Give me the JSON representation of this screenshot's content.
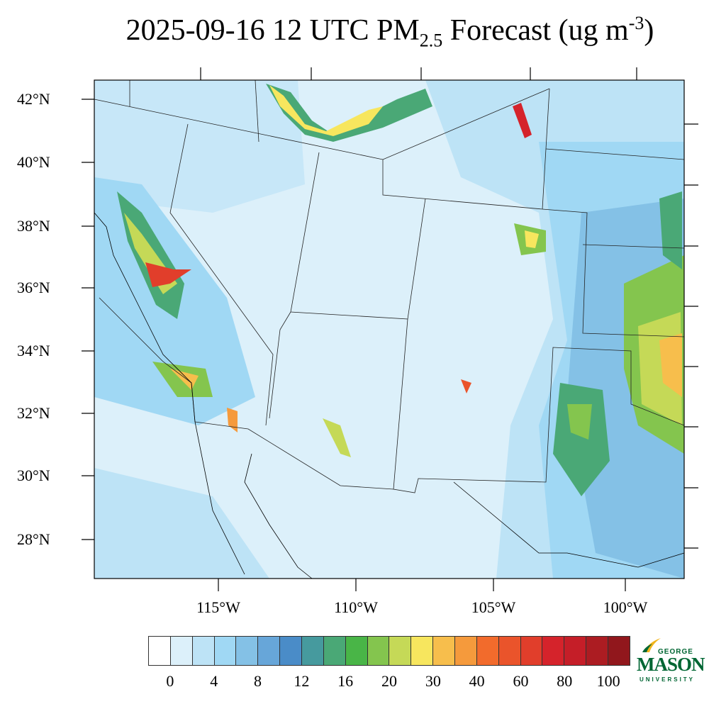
{
  "title": {
    "date_text": "2025-09-16 12 UTC PM",
    "subscript": "2.5",
    "forecast_text": " Forecast (ug m",
    "superscript": "-3",
    "close": ")"
  },
  "lat_labels": [
    "42°N",
    "40°N",
    "38°N",
    "36°N",
    "34°N",
    "32°N",
    "30°N",
    "28°N"
  ],
  "lon_labels": [
    "115°W",
    "110°W",
    "105°W",
    "100°W"
  ],
  "colorbar": {
    "labels": [
      "0",
      "4",
      "8",
      "12",
      "16",
      "20",
      "30",
      "40",
      "60",
      "80",
      "100"
    ],
    "levels": [
      0,
      2,
      4,
      6,
      8,
      10,
      12,
      14,
      16,
      18,
      20,
      25,
      30,
      35,
      40,
      50,
      60,
      70,
      80,
      90,
      100
    ],
    "colors": [
      "#ffffff",
      "#dcf0fa",
      "#bde3f6",
      "#a0d8f4",
      "#84c1e6",
      "#67a6d9",
      "#4a8cc8",
      "#469a9e",
      "#4aa876",
      "#49b547",
      "#84c54e",
      "#c5d957",
      "#f7e65e",
      "#f7be4c",
      "#f59a3c",
      "#f26b2c",
      "#ea542b",
      "#e13e2b",
      "#d5232b",
      "#c51e28",
      "#ac1c22",
      "#91171c"
    ]
  },
  "logo": {
    "line1": "GEORGE",
    "line2": "MASON",
    "line3": "UNIVERSITY"
  }
}
